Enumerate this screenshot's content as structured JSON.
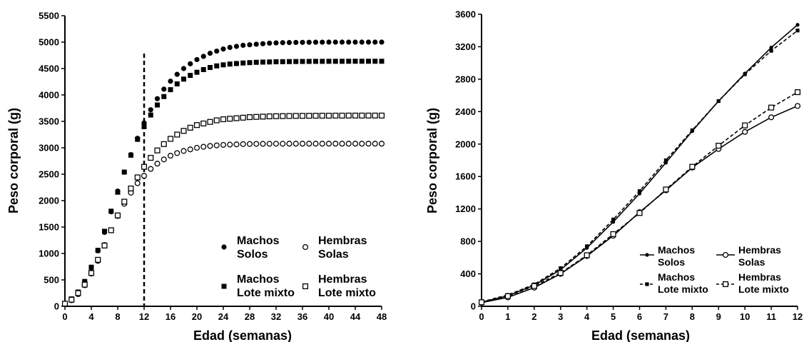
{
  "chart_data": [
    {
      "type": "scatter",
      "xlabel": "Edad (semanas)",
      "ylabel": "Peso corporal (g)",
      "xlim": [
        0,
        48
      ],
      "ylim": [
        0,
        5500
      ],
      "xticks": [
        "0",
        "4",
        "8",
        "12",
        "16",
        "20",
        "24",
        "28",
        "32",
        "36",
        "40",
        "44",
        "48"
      ],
      "yticks": [
        "0",
        "500",
        "1000",
        "1500",
        "2000",
        "2500",
        "3000",
        "3500",
        "4000",
        "4500",
        "5000",
        "5500"
      ],
      "vline_x": 12,
      "legend": "bottom-right",
      "series": [
        {
          "name": "Machos\nSolos",
          "marker": "filled-circle",
          "x": [
            0,
            1,
            2,
            3,
            4,
            5,
            6,
            7,
            8,
            9,
            10,
            11,
            12,
            13,
            14,
            15,
            16,
            17,
            18,
            19,
            20,
            21,
            22,
            23,
            24,
            25,
            26,
            27,
            28,
            29,
            30,
            31,
            32,
            33,
            34,
            35,
            36,
            37,
            38,
            39,
            40,
            41,
            42,
            43,
            44,
            45,
            46,
            47,
            48
          ],
          "y": [
            50,
            130,
            260,
            460,
            720,
            1050,
            1400,
            1790,
            2180,
            2540,
            2870,
            3180,
            3470,
            3720,
            3930,
            4110,
            4260,
            4390,
            4500,
            4590,
            4670,
            4730,
            4790,
            4830,
            4870,
            4900,
            4920,
            4940,
            4950,
            4960,
            4970,
            4980,
            4985,
            4990,
            4992,
            4994,
            4996,
            4997,
            4998,
            4999,
            5000,
            5000,
            5000,
            5000,
            5000,
            5000,
            5000,
            5000,
            5000
          ]
        },
        {
          "name": "Hembras\nSolas",
          "marker": "open-circle",
          "x": [
            0,
            1,
            2,
            3,
            4,
            5,
            6,
            7,
            8,
            9,
            10,
            11,
            12,
            13,
            14,
            15,
            16,
            17,
            18,
            19,
            20,
            21,
            22,
            23,
            24,
            25,
            26,
            27,
            28,
            29,
            30,
            31,
            32,
            33,
            34,
            35,
            36,
            37,
            38,
            39,
            40,
            41,
            42,
            43,
            44,
            45,
            46,
            47,
            48
          ],
          "y": [
            45,
            115,
            230,
            400,
            620,
            860,
            1160,
            1440,
            1710,
            1940,
            2150,
            2330,
            2470,
            2600,
            2700,
            2780,
            2850,
            2900,
            2940,
            2970,
            3000,
            3020,
            3035,
            3045,
            3055,
            3060,
            3065,
            3070,
            3072,
            3074,
            3075,
            3076,
            3077,
            3077,
            3078,
            3078,
            3078,
            3078,
            3078,
            3078,
            3078,
            3078,
            3078,
            3078,
            3078,
            3078,
            3078,
            3078,
            3078
          ]
        },
        {
          "name": "Machos\nLote mixto",
          "marker": "filled-square",
          "x": [
            0,
            1,
            2,
            3,
            4,
            5,
            6,
            7,
            8,
            9,
            10,
            11,
            12,
            13,
            14,
            15,
            16,
            17,
            18,
            19,
            20,
            21,
            22,
            23,
            24,
            25,
            26,
            27,
            28,
            29,
            30,
            31,
            32,
            33,
            34,
            35,
            36,
            37,
            38,
            39,
            40,
            41,
            42,
            43,
            44,
            45,
            46,
            47,
            48
          ],
          "y": [
            55,
            140,
            270,
            470,
            740,
            1060,
            1420,
            1800,
            2160,
            2540,
            2860,
            3160,
            3400,
            3620,
            3810,
            3970,
            4100,
            4210,
            4300,
            4370,
            4430,
            4480,
            4520,
            4550,
            4570,
            4585,
            4595,
            4605,
            4612,
            4618,
            4622,
            4625,
            4628,
            4630,
            4632,
            4633,
            4634,
            4635,
            4636,
            4636,
            4637,
            4637,
            4637,
            4638,
            4638,
            4638,
            4638,
            4638,
            4638
          ]
        },
        {
          "name": "Hembras\nLote mixto",
          "marker": "open-square",
          "x": [
            0,
            1,
            2,
            3,
            4,
            5,
            6,
            7,
            8,
            9,
            10,
            11,
            12,
            13,
            14,
            15,
            16,
            17,
            18,
            19,
            20,
            21,
            22,
            23,
            24,
            25,
            26,
            27,
            28,
            29,
            30,
            31,
            32,
            33,
            34,
            35,
            36,
            37,
            38,
            39,
            40,
            41,
            42,
            43,
            44,
            45,
            46,
            47,
            48
          ],
          "y": [
            50,
            125,
            250,
            410,
            630,
            880,
            1150,
            1440,
            1720,
            1980,
            2230,
            2440,
            2640,
            2810,
            2950,
            3070,
            3170,
            3250,
            3320,
            3380,
            3430,
            3460,
            3490,
            3520,
            3540,
            3550,
            3560,
            3570,
            3580,
            3585,
            3590,
            3595,
            3598,
            3600,
            3602,
            3604,
            3605,
            3606,
            3607,
            3608,
            3608,
            3609,
            3609,
            3610,
            3610,
            3610,
            3610,
            3610,
            3610
          ]
        }
      ]
    },
    {
      "type": "line",
      "xlabel": "Edad (semanas)",
      "ylabel": "Peso corporal (g)",
      "xlim": [
        0,
        12
      ],
      "ylim": [
        0,
        3600
      ],
      "xticks": [
        "0",
        "1",
        "2",
        "3",
        "4",
        "5",
        "6",
        "7",
        "8",
        "9",
        "10",
        "11",
        "12"
      ],
      "yticks": [
        "0",
        "400",
        "800",
        "1200",
        "1600",
        "2000",
        "2400",
        "2800",
        "3200",
        "3600"
      ],
      "legend": "bottom-right",
      "series": [
        {
          "name": "Machos\nSolos",
          "style": "solid",
          "marker": "small-filled-circle",
          "x": [
            0,
            1,
            2,
            3,
            4,
            5,
            6,
            7,
            8,
            9,
            10,
            11,
            12
          ],
          "y": [
            50,
            130,
            260,
            450,
            720,
            1040,
            1390,
            1770,
            2160,
            2530,
            2870,
            3190,
            3470
          ]
        },
        {
          "name": "Hembras\nSolas",
          "style": "solid",
          "marker": "open-circle",
          "x": [
            0,
            1,
            2,
            3,
            4,
            5,
            6,
            7,
            8,
            9,
            10,
            11,
            12
          ],
          "y": [
            45,
            110,
            230,
            400,
            620,
            870,
            1160,
            1430,
            1710,
            1940,
            2150,
            2330,
            2470
          ]
        },
        {
          "name": "Machos\nLote mixto",
          "style": "dashed",
          "marker": "small-filled-square",
          "x": [
            0,
            1,
            2,
            3,
            4,
            5,
            6,
            7,
            8,
            9,
            10,
            11,
            12
          ],
          "y": [
            55,
            140,
            270,
            470,
            740,
            1070,
            1420,
            1800,
            2170,
            2530,
            2860,
            3150,
            3400
          ]
        },
        {
          "name": "Hembras\nLote mixto",
          "style": "dashed",
          "marker": "open-square",
          "x": [
            0,
            1,
            2,
            3,
            4,
            5,
            6,
            7,
            8,
            9,
            10,
            11,
            12
          ],
          "y": [
            50,
            125,
            250,
            410,
            630,
            890,
            1150,
            1440,
            1720,
            1980,
            2230,
            2450,
            2640
          ]
        }
      ]
    }
  ]
}
